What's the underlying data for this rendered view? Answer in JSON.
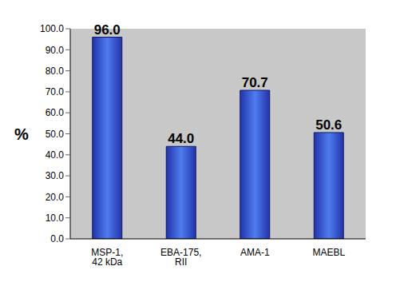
{
  "chart_data": {
    "type": "bar",
    "y_label": "%",
    "categories": [
      "MSP-1, 42 kDa",
      "EBA-175, RII",
      "AMA-1",
      "MAEBL"
    ],
    "values": [
      96.0,
      44.0,
      70.7,
      50.6
    ],
    "value_labels": [
      "96.0",
      "44.0",
      "70.7",
      "50.6"
    ],
    "color": "#2233aa",
    "ylim": [
      0,
      100
    ],
    "yticks": [
      {
        "value": 0,
        "label": "0.0"
      },
      {
        "value": 10,
        "label": "10.0"
      },
      {
        "value": 20,
        "label": "20.0"
      },
      {
        "value": 30,
        "label": "30.0"
      },
      {
        "value": 40,
        "label": "40.0"
      },
      {
        "value": 50,
        "label": "50.0"
      },
      {
        "value": 60,
        "label": "60.0"
      },
      {
        "value": 70,
        "label": "70.0"
      },
      {
        "value": 80,
        "label": "80.0"
      },
      {
        "value": 90,
        "label": "90.0"
      },
      {
        "value": 100,
        "label": "100.0"
      }
    ],
    "grid": false,
    "data_labels": true
  }
}
